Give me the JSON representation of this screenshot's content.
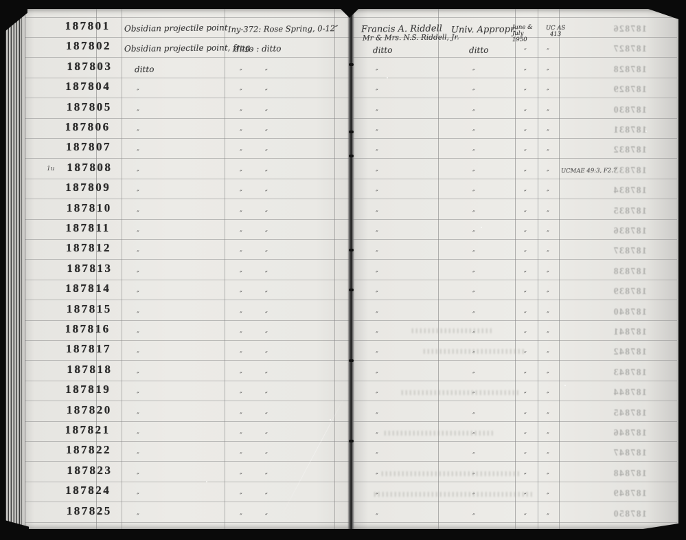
{
  "ledger": {
    "rows": [
      {
        "no": "187801",
        "desc": "Obsidian projectile point",
        "site": "Iny-372: Rose Spring, 0-12″",
        "donor": "Francis A. Riddell",
        "donor2": "Mr & Mrs. N.S. Riddell, Jr.",
        "fund": "Univ. Appropr.",
        "date": [
          "June &",
          "July",
          "1950"
        ],
        "acc": [
          "UC AS",
          "413"
        ],
        "remarks": ""
      },
      {
        "no": "187802",
        "desc": "Obsidian projectile point, frag.",
        "site": "ditto : ditto",
        "donor": "ditto",
        "fund": "ditto",
        "date": "″",
        "acc": "″",
        "remarks": ""
      },
      {
        "no": "187803",
        "desc": "ditto",
        "site": "″|″",
        "donor": "″",
        "fund": "″",
        "date": "″",
        "acc": "″",
        "remarks": ""
      },
      {
        "no": "187804",
        "desc": "″",
        "site": "″|″",
        "donor": "″",
        "fund": "″",
        "date": "″",
        "acc": "″",
        "remarks": ""
      },
      {
        "no": "187805",
        "desc": "″",
        "site": "″|″",
        "donor": "″",
        "fund": "″",
        "date": "″",
        "acc": "″",
        "remarks": ""
      },
      {
        "no": "187806",
        "desc": "″",
        "site": "″|″",
        "donor": "″",
        "fund": "″",
        "date": "″",
        "acc": "″",
        "remarks": ""
      },
      {
        "no": "187807",
        "desc": "″",
        "site": "″|″",
        "donor": "″",
        "fund": "″",
        "date": "″",
        "acc": "″",
        "remarks": ""
      },
      {
        "no": "187808",
        "prefix": "1u",
        "desc": "″",
        "site": "″|″",
        "donor": "″",
        "fund": "″",
        "date": "″",
        "acc": "″",
        "remarks": "UCMAE 49:3, F2.7"
      },
      {
        "no": "187809",
        "desc": "″",
        "site": "″|″",
        "donor": "″",
        "fund": "″",
        "date": "″",
        "acc": "″",
        "remarks": ""
      },
      {
        "no": "187810",
        "desc": "″",
        "site": "″|″",
        "donor": "″",
        "fund": "″",
        "date": "″",
        "acc": "″",
        "remarks": ""
      },
      {
        "no": "187811",
        "desc": "″",
        "site": "″|″",
        "donor": "″",
        "fund": "″",
        "date": "″",
        "acc": "″",
        "remarks": ""
      },
      {
        "no": "187812",
        "desc": "″",
        "site": "″|″",
        "donor": "″",
        "fund": "″",
        "date": "″",
        "acc": "″",
        "remarks": ""
      },
      {
        "no": "187813",
        "desc": "″",
        "site": "″|″",
        "donor": "″",
        "fund": "″",
        "date": "″",
        "acc": "″",
        "remarks": ""
      },
      {
        "no": "187814",
        "desc": "″",
        "site": "″|″",
        "donor": "″",
        "fund": "″",
        "date": "″",
        "acc": "″",
        "remarks": ""
      },
      {
        "no": "187815",
        "desc": "″",
        "site": "″|″",
        "donor": "″",
        "fund": "″",
        "date": "″",
        "acc": "″",
        "remarks": ""
      },
      {
        "no": "187816",
        "desc": "″",
        "site": "″|″",
        "donor": "″",
        "fund": "″",
        "date": "″",
        "acc": "″",
        "remarks": ""
      },
      {
        "no": "187817",
        "desc": "″",
        "site": "″|″",
        "donor": "″",
        "fund": "″",
        "date": "″",
        "acc": "″",
        "remarks": ""
      },
      {
        "no": "187818",
        "desc": "″",
        "site": "″|″",
        "donor": "″",
        "fund": "″",
        "date": "″",
        "acc": "″",
        "remarks": ""
      },
      {
        "no": "187819",
        "desc": "″",
        "site": "″|″",
        "donor": "″",
        "fund": "″",
        "date": "″",
        "acc": "″",
        "remarks": ""
      },
      {
        "no": "187820",
        "desc": "″",
        "site": "″|″",
        "donor": "″",
        "fund": "″",
        "date": "″",
        "acc": "″",
        "remarks": ""
      },
      {
        "no": "187821",
        "desc": "″",
        "site": "″|″",
        "donor": "″",
        "fund": "″",
        "date": "″",
        "acc": "″",
        "remarks": ""
      },
      {
        "no": "187822",
        "desc": "″",
        "site": "″|″",
        "donor": "″",
        "fund": "″",
        "date": "″",
        "acc": "″",
        "remarks": ""
      },
      {
        "no": "187823",
        "desc": "″",
        "site": "″|″",
        "donor": "″",
        "fund": "″",
        "date": "″",
        "acc": "″",
        "remarks": ""
      },
      {
        "no": "187824",
        "desc": "″",
        "site": "″|″",
        "donor": "″",
        "fund": "″",
        "date": "″",
        "acc": "″",
        "remarks": ""
      },
      {
        "no": "187825",
        "desc": "″",
        "site": "″|″",
        "donor": "″",
        "fund": "″",
        "date": "″",
        "acc": "″",
        "remarks": ""
      }
    ],
    "ghost_numbers": [
      "187826",
      "187827",
      "187828",
      "187829",
      "187830",
      "187831",
      "187832",
      "187833",
      "187834",
      "187835",
      "187836",
      "187837",
      "187838",
      "187839",
      "187840",
      "187841",
      "187842",
      "187843",
      "187844",
      "187845",
      "187846",
      "187847",
      "187848",
      "187849",
      "187850"
    ]
  }
}
